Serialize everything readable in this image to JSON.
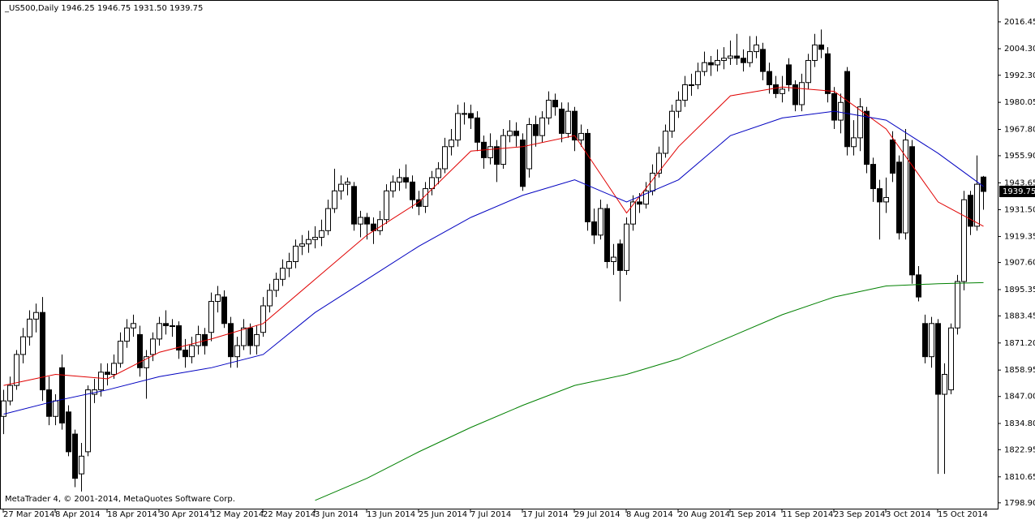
{
  "chart_data": {
    "type": "candlestick",
    "title": "_US500,Daily  1946.25 1946.75 1931.50 1939.75",
    "footer": "MetaTrader 4, © 2001-2014, MetaQuotes Software Corp.",
    "up_color": "#ffffff",
    "down_color": "#000000",
    "ylim": [
      1795.9,
      2025.6
    ],
    "yticks": [
      {
        "value": 2016.45,
        "label": "2016.45"
      },
      {
        "value": 2004.3,
        "label": "2004.30"
      },
      {
        "value": 1992.3,
        "label": "1992.30"
      },
      {
        "value": 1980.05,
        "label": "1980.05"
      },
      {
        "value": 1967.8,
        "label": "1967.80"
      },
      {
        "value": 1955.9,
        "label": "1955.90"
      },
      {
        "value": 1943.65,
        "label": "1943.65"
      },
      {
        "value": 1931.5,
        "label": "1931.50"
      },
      {
        "value": 1919.35,
        "label": "1919.35"
      },
      {
        "value": 1907.6,
        "label": "1907.60"
      },
      {
        "value": 1895.35,
        "label": "1895.35"
      },
      {
        "value": 1883.45,
        "label": "1883.45"
      },
      {
        "value": 1871.2,
        "label": "1871.20"
      },
      {
        "value": 1858.95,
        "label": "1858.95"
      },
      {
        "value": 1847.0,
        "label": "1847.00"
      },
      {
        "value": 1834.8,
        "label": "1834.80"
      },
      {
        "value": 1822.95,
        "label": "1822.95"
      },
      {
        "value": 1810.65,
        "label": "1810.65"
      },
      {
        "value": 1798.9,
        "label": "1798.90"
      }
    ],
    "xticks": [
      {
        "value": 0,
        "label": "27 Mar 2014"
      },
      {
        "value": 8,
        "label": "8 Apr 2014"
      },
      {
        "value": 16,
        "label": "18 Apr 2014"
      },
      {
        "value": 24,
        "label": "30 Apr 2014"
      },
      {
        "value": 32,
        "label": "12 May 2014"
      },
      {
        "value": 40,
        "label": "22 May 2014"
      },
      {
        "value": 48,
        "label": "3 Jun 2014"
      },
      {
        "value": 56,
        "label": "13 Jun 2014"
      },
      {
        "value": 64,
        "label": "25 Jun 2014"
      },
      {
        "value": 72,
        "label": "7 Jul 2014"
      },
      {
        "value": 80,
        "label": "17 Jul 2014"
      },
      {
        "value": 88,
        "label": "29 Jul 2014"
      },
      {
        "value": 96,
        "label": "8 Aug 2014"
      },
      {
        "value": 104,
        "label": "20 Aug 2014"
      },
      {
        "value": 112,
        "label": "1 Sep 2014"
      },
      {
        "value": 120,
        "label": "11 Sep 2014"
      },
      {
        "value": 128,
        "label": "23 Sep 2014"
      },
      {
        "value": 136,
        "label": "3 Oct 2014"
      },
      {
        "value": 144,
        "label": "15 Oct 2014"
      }
    ],
    "ohlc": [
      [
        1838,
        1850,
        1830,
        1845
      ],
      [
        1845,
        1856,
        1843,
        1852
      ],
      [
        1852,
        1868,
        1850,
        1866
      ],
      [
        1866,
        1878,
        1862,
        1874
      ],
      [
        1874,
        1886,
        1870,
        1882
      ],
      [
        1882,
        1889,
        1876,
        1885
      ],
      [
        1885,
        1892,
        1845,
        1850
      ],
      [
        1850,
        1856,
        1834,
        1838
      ],
      [
        1838,
        1848,
        1834,
        1845
      ],
      [
        1860,
        1866,
        1832,
        1835
      ],
      [
        1840,
        1843,
        1820,
        1822
      ],
      [
        1830,
        1832,
        1806,
        1810
      ],
      [
        1812,
        1826,
        1804,
        1820
      ],
      [
        1822,
        1852,
        1820,
        1850
      ],
      [
        1848,
        1855,
        1844,
        1850
      ],
      [
        1850,
        1862,
        1847,
        1858
      ],
      [
        1858,
        1862,
        1852,
        1857
      ],
      [
        1857,
        1866,
        1855,
        1862
      ],
      [
        1862,
        1876,
        1860,
        1872
      ],
      [
        1872,
        1882,
        1869,
        1878
      ],
      [
        1878,
        1884,
        1874,
        1880
      ],
      [
        1875,
        1879,
        1856,
        1860
      ],
      [
        1860,
        1868,
        1846,
        1865
      ],
      [
        1866,
        1876,
        1863,
        1873
      ],
      [
        1873,
        1883,
        1870,
        1880
      ],
      [
        1880,
        1886,
        1875,
        1879
      ],
      [
        1879,
        1882,
        1874,
        1879
      ],
      [
        1879,
        1881,
        1864,
        1868
      ],
      [
        1868,
        1873,
        1860,
        1865
      ],
      [
        1865,
        1874,
        1862,
        1870
      ],
      [
        1870,
        1879,
        1866,
        1875
      ],
      [
        1875,
        1878,
        1866,
        1870
      ],
      [
        1876,
        1894,
        1872,
        1890
      ],
      [
        1890,
        1897,
        1885,
        1893
      ],
      [
        1892,
        1895,
        1878,
        1880
      ],
      [
        1880,
        1883,
        1860,
        1865
      ],
      [
        1865,
        1874,
        1860,
        1870
      ],
      [
        1870,
        1882,
        1868,
        1878
      ],
      [
        1878,
        1880,
        1866,
        1870
      ],
      [
        1870,
        1879,
        1866,
        1875
      ],
      [
        1876,
        1892,
        1874,
        1888
      ],
      [
        1888,
        1898,
        1885,
        1895
      ],
      [
        1895,
        1903,
        1892,
        1900
      ],
      [
        1900,
        1909,
        1897,
        1905
      ],
      [
        1905,
        1912,
        1901,
        1908
      ],
      [
        1908,
        1918,
        1905,
        1915
      ],
      [
        1915,
        1920,
        1911,
        1916
      ],
      [
        1916,
        1922,
        1912,
        1918
      ],
      [
        1918,
        1924,
        1914,
        1919
      ],
      [
        1919,
        1927,
        1915,
        1922
      ],
      [
        1922,
        1936,
        1920,
        1932
      ],
      [
        1932,
        1950,
        1930,
        1940
      ],
      [
        1940,
        1947,
        1936,
        1943
      ],
      [
        1943,
        1946,
        1938,
        1944
      ],
      [
        1942,
        1944,
        1922,
        1925
      ],
      [
        1925,
        1931,
        1919,
        1928
      ],
      [
        1928,
        1930,
        1918,
        1925
      ],
      [
        1925,
        1928,
        1916,
        1922
      ],
      [
        1922,
        1931,
        1920,
        1927
      ],
      [
        1927,
        1943,
        1925,
        1940
      ],
      [
        1940,
        1947,
        1937,
        1944
      ],
      [
        1944,
        1950,
        1940,
        1946
      ],
      [
        1946,
        1952,
        1941,
        1944
      ],
      [
        1944,
        1947,
        1932,
        1936
      ],
      [
        1936,
        1940,
        1929,
        1933
      ],
      [
        1933,
        1944,
        1930,
        1941
      ],
      [
        1941,
        1949,
        1938,
        1946
      ],
      [
        1946,
        1953,
        1943,
        1950
      ],
      [
        1950,
        1964,
        1948,
        1960
      ],
      [
        1960,
        1968,
        1956,
        1963
      ],
      [
        1963,
        1979,
        1960,
        1975
      ],
      [
        1975,
        1980,
        1970,
        1975
      ],
      [
        1975,
        1979,
        1968,
        1973
      ],
      [
        1973,
        1976,
        1958,
        1962
      ],
      [
        1962,
        1965,
        1950,
        1955
      ],
      [
        1955,
        1966,
        1952,
        1960
      ],
      [
        1960,
        1963,
        1944,
        1952
      ],
      [
        1952,
        1968,
        1950,
        1965
      ],
      [
        1965,
        1972,
        1962,
        1967
      ],
      [
        1967,
        1971,
        1960,
        1965
      ],
      [
        1963,
        1966,
        1940,
        1942
      ],
      [
        1950,
        1973,
        1946,
        1970
      ],
      [
        1970,
        1974,
        1960,
        1965
      ],
      [
        1965,
        1976,
        1962,
        1973
      ],
      [
        1973,
        1985,
        1970,
        1981
      ],
      [
        1981,
        1984,
        1974,
        1978
      ],
      [
        1977,
        1980,
        1962,
        1966
      ],
      [
        1966,
        1980,
        1964,
        1976
      ],
      [
        1976,
        1978,
        1958,
        1963
      ],
      [
        1963,
        1970,
        1960,
        1966
      ],
      [
        1966,
        1968,
        1922,
        1926
      ],
      [
        1926,
        1932,
        1916,
        1920
      ],
      [
        1920,
        1936,
        1918,
        1932
      ],
      [
        1932,
        1934,
        1905,
        1908
      ],
      [
        1908,
        1916,
        1902,
        1910
      ],
      [
        1916,
        1918,
        1890,
        1904
      ],
      [
        1904,
        1928,
        1902,
        1925
      ],
      [
        1925,
        1938,
        1922,
        1935
      ],
      [
        1935,
        1939,
        1930,
        1934
      ],
      [
        1934,
        1944,
        1932,
        1940
      ],
      [
        1940,
        1952,
        1938,
        1948
      ],
      [
        1948,
        1960,
        1946,
        1957
      ],
      [
        1957,
        1970,
        1955,
        1967
      ],
      [
        1967,
        1979,
        1964,
        1976
      ],
      [
        1976,
        1985,
        1973,
        1981
      ],
      [
        1981,
        1992,
        1978,
        1988
      ],
      [
        1988,
        1993,
        1983,
        1988
      ],
      [
        1988,
        1998,
        1986,
        1994
      ],
      [
        1994,
        2003,
        1992,
        1998
      ],
      [
        1998,
        2001,
        1992,
        1997
      ],
      [
        1997,
        2004,
        1994,
        1999
      ],
      [
        1999,
        2005,
        1995,
        2000
      ],
      [
        2000,
        2008,
        1997,
        2001
      ],
      [
        2001,
        2011,
        1997,
        2000
      ],
      [
        2000,
        2004,
        1994,
        1998
      ],
      [
        1998,
        2010,
        1996,
        2003
      ],
      [
        2003,
        2010,
        2000,
        2006
      ],
      [
        2004,
        2007,
        1990,
        1994
      ],
      [
        1994,
        1998,
        1984,
        1988
      ],
      [
        1988,
        1992,
        1982,
        1984
      ],
      [
        1984,
        1992,
        1980,
        1986
      ],
      [
        1997,
        2000,
        1985,
        1988
      ],
      [
        1988,
        1990,
        1976,
        1979
      ],
      [
        1979,
        1993,
        1976,
        1989
      ],
      [
        1989,
        2002,
        1986,
        1999
      ],
      [
        1999,
        2011,
        1996,
        2006
      ],
      [
        2006,
        2013,
        2000,
        2004
      ],
      [
        2002,
        2005,
        1980,
        1984
      ],
      [
        1984,
        1987,
        1968,
        1972
      ],
      [
        1972,
        1984,
        1966,
        1980
      ],
      [
        1994,
        1996,
        1956,
        1960
      ],
      [
        1960,
        1972,
        1956,
        1964
      ],
      [
        1964,
        1982,
        1958,
        1978
      ],
      [
        1976,
        1978,
        1948,
        1952
      ],
      [
        1952,
        1955,
        1935,
        1941
      ],
      [
        1941,
        1945,
        1918,
        1935
      ],
      [
        1935,
        1946,
        1930,
        1937
      ],
      [
        1963,
        1967,
        1944,
        1948
      ],
      [
        1953,
        1956,
        1918,
        1921
      ],
      [
        1921,
        1968,
        1918,
        1963
      ],
      [
        1960,
        1963,
        1898,
        1902
      ],
      [
        1902,
        1906,
        1890,
        1892
      ],
      [
        1880,
        1884,
        1862,
        1865
      ],
      [
        1865,
        1883,
        1860,
        1880
      ],
      [
        1880,
        1882,
        1812,
        1848
      ],
      [
        1848,
        1862,
        1812,
        1857
      ],
      [
        1850,
        1880,
        1848,
        1878
      ],
      [
        1878,
        1902,
        1875,
        1899
      ],
      [
        1899,
        1940,
        1895,
        1936
      ],
      [
        1938,
        1940,
        1920,
        1924
      ],
      [
        1924,
        1956,
        1922,
        1943
      ],
      [
        1946.25,
        1946.75,
        1931.5,
        1939.75
      ]
    ],
    "lines": [
      {
        "color": "#e00000",
        "x": [
          0,
          8,
          16,
          24,
          32,
          40,
          48,
          56,
          64,
          72,
          80,
          88,
          96,
          104,
          112,
          120,
          128,
          136,
          144,
          151
        ],
        "values": [
          1852,
          1857,
          1855,
          1867,
          1873,
          1880,
          1900,
          1920,
          1935,
          1958,
          1960,
          1965,
          1930,
          1960,
          1983,
          1987,
          1985,
          1968,
          1935,
          1924
        ]
      },
      {
        "color": "#0000c0",
        "x": [
          0,
          8,
          16,
          24,
          32,
          40,
          48,
          56,
          64,
          72,
          80,
          88,
          96,
          104,
          112,
          120,
          128,
          136,
          144,
          151
        ],
        "values": [
          1839,
          1845,
          1850,
          1856,
          1860,
          1866,
          1885,
          1900,
          1915,
          1928,
          1938,
          1945,
          1935,
          1945,
          1965,
          1973,
          1976,
          1972,
          1957,
          1942
        ]
      },
      {
        "color": "#008000",
        "x": [
          48,
          56,
          64,
          72,
          80,
          88,
          96,
          104,
          112,
          120,
          128,
          136,
          144,
          151
        ],
        "values": [
          1800,
          1810,
          1822,
          1833,
          1843,
          1852,
          1857,
          1864,
          1874,
          1884,
          1892,
          1897,
          1898,
          1898.5
        ]
      }
    ]
  }
}
